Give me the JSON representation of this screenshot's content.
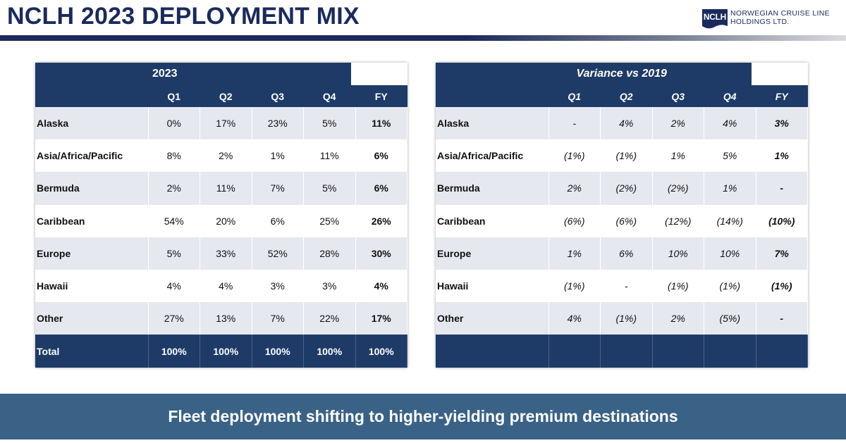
{
  "title": "NCLH 2023 DEPLOYMENT MIX",
  "logo": {
    "abbr": "NCLH",
    "line1": "NORWEGIAN CRUISE LINE",
    "line2": "HOLDINGS LTD."
  },
  "colors": {
    "navy": "#1b2a5c",
    "header_blue": "#1e3a66",
    "footer_blue": "#3a6287",
    "row_shade": "#e6e8ef"
  },
  "left_table": {
    "title": "2023",
    "columns": [
      "Q1",
      "Q2",
      "Q3",
      "Q4",
      "FY"
    ],
    "rows": [
      {
        "label": "Alaska",
        "values": [
          "0%",
          "17%",
          "23%",
          "5%",
          "11%"
        ]
      },
      {
        "label": "Asia/Africa/Pacific",
        "values": [
          "8%",
          "2%",
          "1%",
          "11%",
          "6%"
        ]
      },
      {
        "label": "Bermuda",
        "values": [
          "2%",
          "11%",
          "7%",
          "5%",
          "6%"
        ]
      },
      {
        "label": "Caribbean",
        "values": [
          "54%",
          "20%",
          "6%",
          "25%",
          "26%"
        ]
      },
      {
        "label": "Europe",
        "values": [
          "5%",
          "33%",
          "52%",
          "28%",
          "30%"
        ]
      },
      {
        "label": "Hawaii",
        "values": [
          "4%",
          "4%",
          "3%",
          "3%",
          "4%"
        ]
      },
      {
        "label": "Other",
        "values": [
          "27%",
          "13%",
          "7%",
          "22%",
          "17%"
        ]
      }
    ],
    "total": {
      "label": "Total",
      "values": [
        "100%",
        "100%",
        "100%",
        "100%",
        "100%"
      ]
    }
  },
  "right_table": {
    "title": "Variance vs 2019",
    "columns": [
      "Q1",
      "Q2",
      "Q3",
      "Q4",
      "FY"
    ],
    "rows": [
      {
        "label": "Alaska",
        "values": [
          "-",
          "4%",
          "2%",
          "4%",
          "3%"
        ]
      },
      {
        "label": "Asia/Africa/Pacific",
        "values": [
          "(1%)",
          "(1%)",
          "1%",
          "5%",
          "1%"
        ]
      },
      {
        "label": "Bermuda",
        "values": [
          "2%",
          "(2%)",
          "(2%)",
          "1%",
          "-"
        ]
      },
      {
        "label": "Caribbean",
        "values": [
          "(6%)",
          "(6%)",
          "(12%)",
          "(14%)",
          "(10%)"
        ]
      },
      {
        "label": "Europe",
        "values": [
          "1%",
          "6%",
          "10%",
          "10%",
          "7%"
        ]
      },
      {
        "label": "Hawaii",
        "values": [
          "(1%)",
          "-",
          "(1%)",
          "(1%)",
          "(1%)"
        ]
      },
      {
        "label": "Other",
        "values": [
          "4%",
          "(1%)",
          "2%",
          "(5%)",
          "-"
        ]
      }
    ]
  },
  "footer": {
    "text": "Fleet deployment shifting to higher-yielding premium destinations"
  }
}
